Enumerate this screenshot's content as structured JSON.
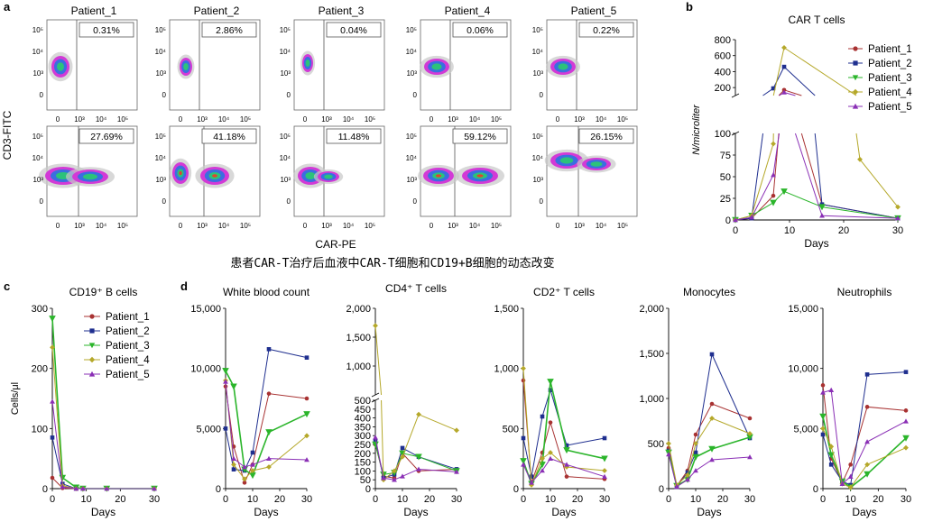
{
  "caption": "患者CAR-T治疗后血液中CAR-T细胞和CD19+B细胞的动态改变",
  "panel_labels": {
    "a": "a",
    "b": "b",
    "c": "c",
    "d": "d"
  },
  "colors": {
    "Patient_1": "#a83232",
    "Patient_2": "#1f2f8f",
    "Patient_3": "#2bb52b",
    "Patient_4": "#b5a82a",
    "Patient_5": "#8a2fb5",
    "flow_box": "#555555"
  },
  "flow": {
    "y_label": "CD3-FITC",
    "x_label": "CAR-PE",
    "y_ticks": [
      "10⁵",
      "10⁴",
      "10³",
      "0"
    ],
    "x_ticks": [
      "0",
      "10³",
      "10⁴",
      "10⁵"
    ],
    "patients": [
      "Patient_1",
      "Patient_2",
      "Patient_3",
      "Patient_4",
      "Patient_5"
    ],
    "top_row_pct": [
      "0.31%",
      "2.86%",
      "0.04%",
      "0.06%",
      "0.22%"
    ],
    "bottom_row_pct": [
      "27.69%",
      "41.18%",
      "11.48%",
      "59.12%",
      "26.15%"
    ]
  },
  "chart_data": [
    {
      "id": "car_t",
      "type": "line",
      "title": "CAR T cells",
      "xlabel": "Days",
      "ylabel": "N/microliter",
      "xlim": [
        0,
        30
      ],
      "x_ticks": [
        0,
        10,
        20,
        30
      ],
      "y_ticks_lower": [
        0,
        25,
        50,
        75,
        100
      ],
      "y_ticks_upper": [
        200,
        400,
        600,
        800
      ],
      "legend": [
        "Patient_1",
        "Patient_2",
        "Patient_3",
        "Patient_4",
        "Patient_5"
      ],
      "series": [
        {
          "name": "Patient_1",
          "x": [
            0,
            3,
            7,
            9,
            16,
            30
          ],
          "y": [
            0,
            2,
            28,
            170,
            18,
            2
          ]
        },
        {
          "name": "Patient_2",
          "x": [
            0,
            3,
            7,
            9,
            16,
            30
          ],
          "y": [
            0,
            2,
            190,
            460,
            18,
            2
          ]
        },
        {
          "name": "Patient_3",
          "x": [
            0,
            3,
            7,
            9,
            16,
            30
          ],
          "y": [
            0,
            5,
            20,
            33,
            15,
            2
          ]
        },
        {
          "name": "Patient_4",
          "x": [
            0,
            3,
            7,
            9,
            23,
            30
          ],
          "y": [
            0,
            5,
            88,
            700,
            70,
            15
          ]
        },
        {
          "name": "Patient_5",
          "x": [
            0,
            3,
            7,
            9,
            16,
            30
          ],
          "y": [
            0,
            3,
            52,
            140,
            5,
            2
          ]
        }
      ]
    },
    {
      "id": "cd19",
      "type": "line",
      "title": "CD19⁺ B cells",
      "xlabel": "Days",
      "ylabel": "Cells/μl",
      "ylim": [
        0,
        300
      ],
      "xlim": [
        0,
        30
      ],
      "y_ticks": [
        0,
        100,
        200,
        300
      ],
      "x_ticks": [
        0,
        10,
        20,
        30
      ],
      "legend": [
        "Patient_1",
        "Patient_2",
        "Patient_3",
        "Patient_4",
        "Patient_5"
      ],
      "series": [
        {
          "name": "Patient_1",
          "x": [
            0,
            3,
            7,
            9,
            16,
            30
          ],
          "y": [
            18,
            1,
            0,
            0,
            0,
            0
          ]
        },
        {
          "name": "Patient_2",
          "x": [
            0,
            3,
            7,
            9,
            16,
            30
          ],
          "y": [
            85,
            8,
            0,
            0,
            0,
            0
          ]
        },
        {
          "name": "Patient_3",
          "x": [
            0,
            3,
            7,
            9,
            16,
            30
          ],
          "y": [
            283,
            18,
            2,
            0,
            0,
            0
          ]
        },
        {
          "name": "Patient_4",
          "x": [
            0,
            3,
            7,
            9,
            16,
            30
          ],
          "y": [
            235,
            5,
            0,
            0,
            0,
            0
          ]
        },
        {
          "name": "Patient_5",
          "x": [
            0,
            3,
            7,
            9,
            16,
            30
          ],
          "y": [
            145,
            3,
            0,
            0,
            0,
            0
          ]
        }
      ]
    },
    {
      "id": "wbc",
      "type": "line",
      "title": "White blood count",
      "xlabel": "Days",
      "ylim": [
        0,
        15000
      ],
      "y_ticks": [
        0,
        5000,
        10000,
        15000
      ],
      "y_tick_labels": [
        "0",
        "5,000",
        "10,000",
        "15,000"
      ],
      "xlim": [
        0,
        30
      ],
      "x_ticks": [
        0,
        10,
        20,
        30
      ],
      "series": [
        {
          "name": "Patient_1",
          "x": [
            0,
            3,
            7,
            10,
            16,
            30
          ],
          "y": [
            8500,
            3500,
            500,
            2000,
            7900,
            7500
          ]
        },
        {
          "name": "Patient_2",
          "x": [
            0,
            3,
            7,
            10,
            16,
            30
          ],
          "y": [
            5000,
            1600,
            1500,
            3000,
            11600,
            10900
          ]
        },
        {
          "name": "Patient_3",
          "x": [
            0,
            3,
            7,
            10,
            16,
            30
          ],
          "y": [
            9800,
            8500,
            1600,
            1100,
            4700,
            6200
          ]
        },
        {
          "name": "Patient_4",
          "x": [
            0,
            3,
            7,
            10,
            16,
            30
          ],
          "y": [
            9000,
            2000,
            800,
            1500,
            1800,
            4400
          ]
        },
        {
          "name": "Patient_5",
          "x": [
            0,
            3,
            7,
            10,
            16,
            30
          ],
          "y": [
            8900,
            2500,
            1800,
            2000,
            2500,
            2400
          ]
        }
      ]
    },
    {
      "id": "cd4",
      "type": "line",
      "title": "CD4⁺ T cells",
      "xlabel": "Days",
      "broken_axis": true,
      "break_at": 500,
      "y_ticks_lower": [
        0,
        50,
        100,
        150,
        200,
        250,
        300,
        350,
        400,
        450,
        500
      ],
      "y_ticks_upper": [
        1000,
        1500,
        2000
      ],
      "y_tick_labels_upper": [
        "1,000",
        "1,500",
        "2,000"
      ],
      "xlim": [
        0,
        30
      ],
      "x_ticks": [
        0,
        10,
        20,
        30
      ],
      "series": [
        {
          "name": "Patient_1",
          "x": [
            0,
            3,
            7,
            10,
            16,
            30
          ],
          "y": [
            250,
            70,
            60,
            200,
            100,
            110
          ]
        },
        {
          "name": "Patient_2",
          "x": [
            0,
            3,
            7,
            10,
            16,
            30
          ],
          "y": [
            270,
            60,
            80,
            230,
            180,
            110
          ]
        },
        {
          "name": "Patient_3",
          "x": [
            0,
            3,
            7,
            10,
            16,
            30
          ],
          "y": [
            250,
            80,
            90,
            200,
            180,
            100
          ]
        },
        {
          "name": "Patient_4",
          "x": [
            0,
            3,
            7,
            10,
            16,
            30
          ],
          "y": [
            1700,
            50,
            100,
            180,
            420,
            330
          ]
        },
        {
          "name": "Patient_5",
          "x": [
            0,
            3,
            7,
            10,
            16,
            30
          ],
          "y": [
            290,
            60,
            50,
            70,
            110,
            95
          ]
        }
      ]
    },
    {
      "id": "cd2",
      "type": "line",
      "title": "CD2⁺ T cells",
      "xlabel": "Days",
      "ylim": [
        0,
        1500
      ],
      "y_ticks": [
        0,
        500,
        1000,
        1500
      ],
      "y_tick_labels": [
        "0",
        "500",
        "1,000",
        "1,500"
      ],
      "xlim": [
        0,
        30
      ],
      "x_ticks": [
        0,
        10,
        20,
        30
      ],
      "series": [
        {
          "name": "Patient_1",
          "x": [
            0,
            3,
            7,
            10,
            16,
            30
          ],
          "y": [
            900,
            50,
            300,
            550,
            100,
            80
          ]
        },
        {
          "name": "Patient_2",
          "x": [
            0,
            3,
            7,
            10,
            16,
            30
          ],
          "y": [
            420,
            100,
            600,
            820,
            360,
            420
          ]
        },
        {
          "name": "Patient_3",
          "x": [
            0,
            3,
            7,
            10,
            16,
            30
          ],
          "y": [
            230,
            40,
            200,
            890,
            320,
            250
          ]
        },
        {
          "name": "Patient_4",
          "x": [
            0,
            3,
            7,
            10,
            16,
            30
          ],
          "y": [
            1000,
            30,
            250,
            300,
            180,
            150
          ]
        },
        {
          "name": "Patient_5",
          "x": [
            0,
            3,
            7,
            10,
            16,
            30
          ],
          "y": [
            200,
            50,
            150,
            250,
            200,
            100
          ]
        }
      ]
    },
    {
      "id": "mono",
      "type": "line",
      "title": "Monocytes",
      "xlabel": "Days",
      "ylim": [
        0,
        2000
      ],
      "y_ticks": [
        0,
        500,
        1000,
        1500,
        2000
      ],
      "y_tick_labels": [
        "0",
        "500",
        "1,000",
        "1,500",
        "2,000"
      ],
      "xlim": [
        0,
        30
      ],
      "x_ticks": [
        0,
        10,
        20,
        30
      ],
      "series": [
        {
          "name": "Patient_1",
          "x": [
            0,
            3,
            7,
            10,
            16,
            30
          ],
          "y": [
            450,
            30,
            200,
            600,
            940,
            780
          ]
        },
        {
          "name": "Patient_2",
          "x": [
            0,
            3,
            7,
            10,
            16,
            30
          ],
          "y": [
            420,
            20,
            180,
            400,
            1490,
            560
          ]
        },
        {
          "name": "Patient_3",
          "x": [
            0,
            3,
            7,
            10,
            16,
            30
          ],
          "y": [
            400,
            30,
            100,
            350,
            440,
            570
          ]
        },
        {
          "name": "Patient_4",
          "x": [
            0,
            3,
            7,
            10,
            16,
            30
          ],
          "y": [
            500,
            40,
            150,
            500,
            780,
            610
          ]
        },
        {
          "name": "Patient_5",
          "x": [
            0,
            3,
            7,
            10,
            16,
            30
          ],
          "y": [
            380,
            20,
            100,
            200,
            320,
            350
          ]
        }
      ]
    },
    {
      "id": "neut",
      "type": "line",
      "title": "Neutrophils",
      "xlabel": "Days",
      "ylim": [
        0,
        15000
      ],
      "y_ticks": [
        0,
        5000,
        10000,
        15000
      ],
      "y_tick_labels": [
        "0",
        "5,000",
        "10,000",
        "15,000"
      ],
      "xlim": [
        0,
        30
      ],
      "x_ticks": [
        0,
        10,
        20,
        30
      ],
      "series": [
        {
          "name": "Patient_1",
          "x": [
            0,
            3,
            7,
            10,
            16,
            30
          ],
          "y": [
            8600,
            2500,
            500,
            2000,
            6800,
            6500
          ]
        },
        {
          "name": "Patient_2",
          "x": [
            0,
            3,
            7,
            10,
            16,
            30
          ],
          "y": [
            4500,
            2000,
            600,
            300,
            9500,
            9700
          ]
        },
        {
          "name": "Patient_3",
          "x": [
            0,
            3,
            7,
            10,
            16,
            30
          ],
          "y": [
            6000,
            2800,
            600,
            100,
            1200,
            4200
          ]
        },
        {
          "name": "Patient_4",
          "x": [
            0,
            3,
            7,
            10,
            16,
            30
          ],
          "y": [
            5000,
            3500,
            400,
            100,
            2000,
            3400
          ]
        },
        {
          "name": "Patient_5",
          "x": [
            0,
            3,
            7,
            10,
            16,
            30
          ],
          "y": [
            8000,
            8200,
            400,
            1000,
            3900,
            5600
          ]
        }
      ]
    }
  ]
}
